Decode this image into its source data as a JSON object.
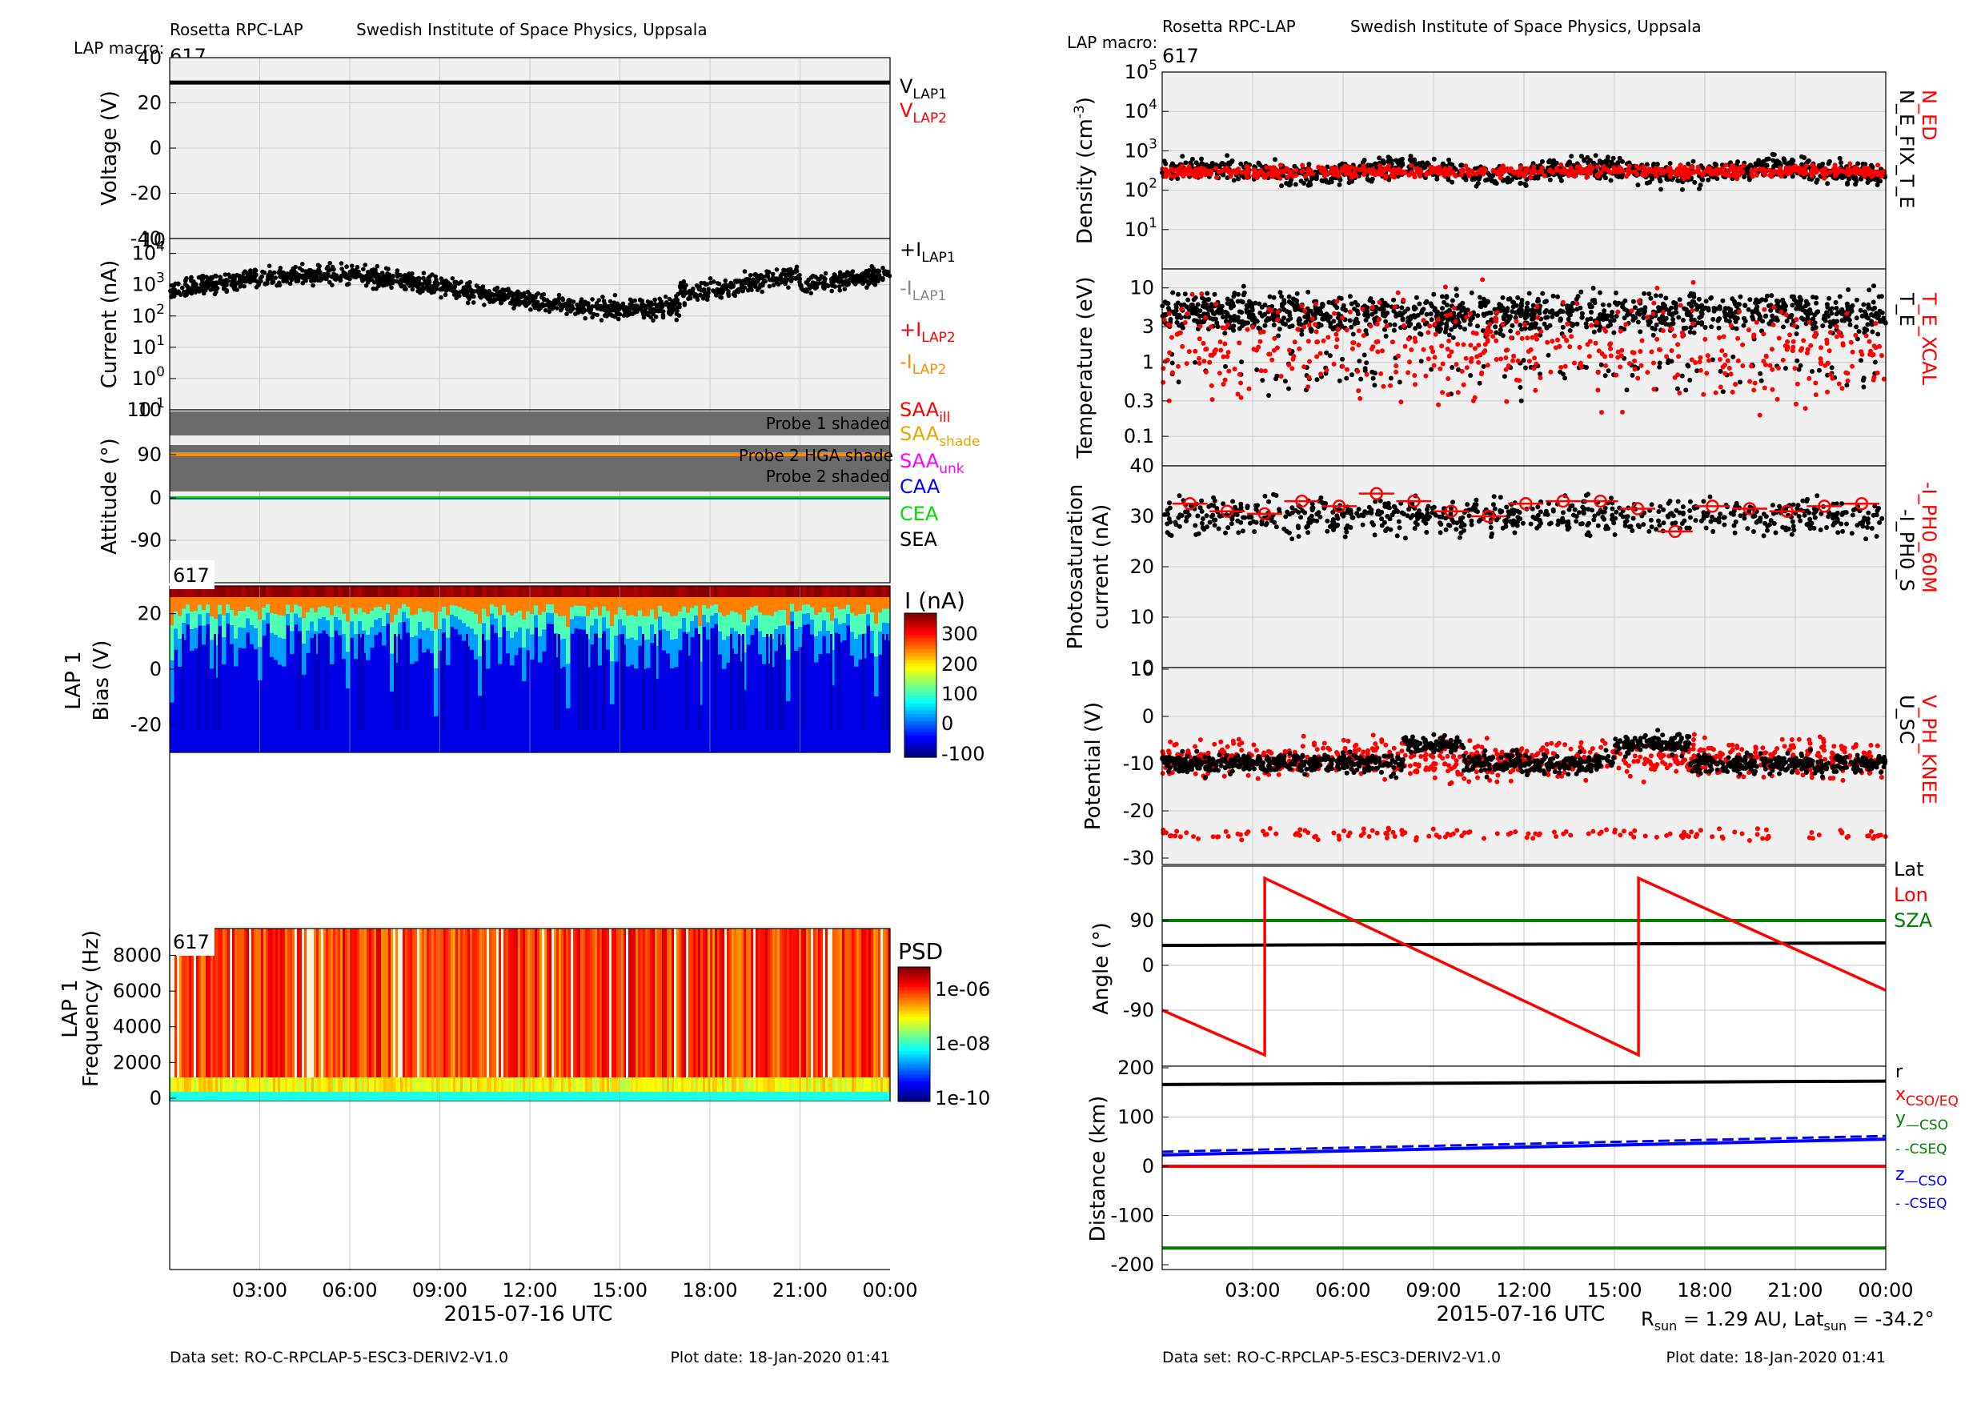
{
  "left": {
    "header": {
      "instrument": "Rosetta RPC-LAP",
      "institute": "Swedish Institute of Space Physics, Uppsala",
      "macro_label": "LAP macro:",
      "macro": "617"
    },
    "xaxis": {
      "ticks": [
        "03:00",
        "06:00",
        "09:00",
        "12:00",
        "15:00",
        "18:00",
        "21:00",
        "00:00"
      ],
      "title": "2015-07-16 UTC"
    },
    "footer": {
      "dataset": "Data set: RO-C-RPCLAP-5-ESC3-DERIV2-V1.0",
      "plotdate": "Plot date: 18-Jan-2020 01:41"
    }
  },
  "right": {
    "header": {
      "instrument": "Rosetta RPC-LAP",
      "institute": "Swedish Institute of Space Physics, Uppsala",
      "macro_label": "LAP macro:",
      "macro": "617"
    },
    "xaxis": {
      "ticks": [
        "03:00",
        "06:00",
        "09:00",
        "12:00",
        "15:00",
        "18:00",
        "21:00",
        "00:00"
      ],
      "title": "2015-07-16 UTC"
    },
    "footer": {
      "dataset": "Data set: RO-C-RPCLAP-5-ESC3-DERIV2-V1.0",
      "plotdate": "Plot date: 18-Jan-2020 01:41"
    },
    "rsun_text": "R",
    "rsun_sub": "sun",
    "rsun_val": " = 1.29 AU, Lat",
    "latsun_sub": "sun",
    "latsun_val": " = -34.2°"
  },
  "colors": {
    "black": "#000000",
    "red": "#ff0000",
    "gray": "#888888",
    "orange": "#ff8c00",
    "gold": "#e6a800",
    "magenta": "#ff00ff",
    "blue": "#0000ff",
    "green": "#00dd00",
    "darkgreen": "#008000",
    "panel": "#f0f0f0",
    "shade": "#6b6b6b"
  },
  "chart_data": [
    {
      "id": "voltage",
      "type": "line",
      "ylabel": "Voltage (V)",
      "ylim": [
        -40,
        40
      ],
      "yticks": [
        "40",
        "20",
        "0",
        "-20",
        "-40"
      ],
      "series": [
        {
          "name": "V_LAP1",
          "values": [
            29,
            29
          ]
        }
      ],
      "legend": [
        {
          "main": "V",
          "sub": "LAP1",
          "color": "black"
        },
        {
          "main": "V",
          "sub": "LAP2",
          "color": "red"
        }
      ]
    },
    {
      "id": "current",
      "type": "scatter",
      "ylabel": "Current (nA)",
      "yscale": "log",
      "ylim": [
        0.1,
        10000
      ],
      "yticks": [
        "10",
        "10",
        "10",
        "10",
        "10",
        "10"
      ],
      "ytick_exp": [
        "4",
        "3",
        "2",
        "1",
        "0",
        "-1"
      ],
      "typical_range": [
        300,
        6000
      ],
      "legend": [
        {
          "main": "+I",
          "sub": "LAP1",
          "color": "black"
        },
        {
          "main": "-I",
          "sub": "LAP1",
          "color": "gray"
        },
        {
          "main": "+I",
          "sub": "LAP2",
          "color": "red"
        },
        {
          "main": "-I",
          "sub": "LAP2",
          "color": "orange"
        }
      ]
    },
    {
      "id": "attitude",
      "type": "line",
      "ylabel": "Attitude (°)",
      "yticks": [
        "90",
        "0",
        "-90"
      ],
      "bands": [
        {
          "label": "Probe 1 shaded"
        },
        {
          "label": "Probe 2 HGA shade"
        },
        {
          "label": "Probe 2 shaded"
        }
      ],
      "series": [
        {
          "name": "SAA",
          "values": [
            90,
            90
          ]
        },
        {
          "name": "CEA",
          "values": [
            0,
            0
          ]
        }
      ],
      "legend": [
        {
          "main": "SAA",
          "sub": "ill",
          "color": "red"
        },
        {
          "main": "SAA",
          "sub": "shade",
          "color": "gold"
        },
        {
          "main": "SAA",
          "sub": "unk",
          "color": "magenta"
        },
        {
          "main": "CAA",
          "sub": "",
          "color": "blue"
        },
        {
          "main": "CEA",
          "sub": "",
          "color": "green"
        },
        {
          "main": "SEA",
          "sub": "",
          "color": "black"
        }
      ]
    },
    {
      "id": "sweep",
      "type": "heatmap",
      "ylabel": "Bias (V)",
      "ylabel2": "LAP 1",
      "ylim": [
        -30,
        30
      ],
      "yticks": [
        "20",
        "0",
        "-20"
      ],
      "macro": "617",
      "colorbar": {
        "title": "I (nA)",
        "ticks": [
          "300",
          "200",
          "100",
          "0",
          "-100"
        ]
      }
    },
    {
      "id": "psd",
      "type": "heatmap",
      "ylabel": "Frequency (Hz)",
      "ylabel2": "LAP 1",
      "ylim": [
        0,
        9500
      ],
      "yticks": [
        "8000",
        "6000",
        "4000",
        "2000",
        "0"
      ],
      "macro": "617",
      "colorbar": {
        "title": "PSD",
        "ticks": [
          "1e-06",
          "1e-08",
          "1e-10"
        ]
      }
    },
    {
      "id": "density",
      "type": "scatter",
      "ylabel": "Density (cm",
      "ylabel_sup": "-3",
      "ylabel_end": ")",
      "yscale": "log",
      "ylim": [
        1,
        100000
      ],
      "yticks": [
        "10",
        "10",
        "10",
        "10",
        "10"
      ],
      "ytick_exp": [
        "5",
        "4",
        "3",
        "2",
        "1"
      ],
      "typical": 300,
      "legend": [
        {
          "text": "N_ED",
          "color": "red"
        },
        {
          "text": "N_E_FIX_T_E",
          "color": "black"
        }
      ]
    },
    {
      "id": "temperature",
      "type": "scatter",
      "ylabel": "Temperature (eV)",
      "yscale": "log",
      "ylim": [
        0.02,
        15
      ],
      "yticks": [
        "10",
        "3",
        "1",
        "0.3",
        "0.1"
      ],
      "legend": [
        {
          "text": "T_E_XCAL",
          "color": "red"
        },
        {
          "text": "T_E",
          "color": "black"
        }
      ]
    },
    {
      "id": "photo",
      "type": "scatter",
      "ylabel": "Photosaturation",
      "ylabel2": "current (nA)",
      "ylim": [
        0,
        40
      ],
      "yticks": [
        "40",
        "30",
        "20",
        "10",
        "0"
      ],
      "averages_60m": [
        32.5,
        31,
        30.5,
        33,
        32,
        34.5,
        33,
        31,
        30,
        32.5,
        33,
        33,
        31.5,
        27,
        32,
        31.5,
        31,
        32,
        32.5
      ],
      "legend": [
        {
          "text": "-I_PH0_60M",
          "color": "red"
        },
        {
          "text": "-I_PH0_S",
          "color": "black"
        }
      ]
    },
    {
      "id": "potential",
      "type": "scatter",
      "ylabel": "Potential (V)",
      "ylim": [
        -30,
        10
      ],
      "yticks": [
        "10",
        "0",
        "-10",
        "-20",
        "-30"
      ],
      "legend": [
        {
          "text": "V_PH_KNEE",
          "color": "red"
        },
        {
          "text": "U_SC",
          "color": "black"
        }
      ]
    },
    {
      "id": "angle",
      "type": "line",
      "ylabel": "Angle (°)",
      "ylim": [
        -180,
        180
      ],
      "yticks": [
        "90",
        "0",
        "-90"
      ],
      "series": [
        {
          "name": "Lat",
          "values": [
            40,
            45
          ]
        },
        {
          "name": "Lon",
          "x": [
            0,
            3.4,
            3.4,
            15.8,
            15.8,
            24
          ],
          "values": [
            -90,
            -180,
            175,
            -180,
            175,
            -50
          ]
        },
        {
          "name": "SZA",
          "values": [
            90,
            90
          ]
        }
      ],
      "legend": [
        {
          "text": "Lat",
          "color": "black"
        },
        {
          "text": "Lon",
          "color": "red"
        },
        {
          "text": "SZA",
          "color": "darkgreen"
        }
      ]
    },
    {
      "id": "distance",
      "type": "line",
      "ylabel": "Distance (km)",
      "ylim": [
        -200,
        200
      ],
      "yticks": [
        "200",
        "100",
        "0",
        "-100",
        "-200"
      ],
      "series": [
        {
          "name": "r",
          "values": [
            166,
            173
          ]
        },
        {
          "name": "x",
          "values": [
            0,
            0
          ]
        },
        {
          "name": "y",
          "values": [
            -166,
            -166
          ]
        },
        {
          "name": "z",
          "values": [
            23,
            55
          ]
        }
      ],
      "legend": [
        {
          "main": "r",
          "sub": "",
          "color": "black"
        },
        {
          "main": "x",
          "sub": "CSO/EQ",
          "color": "red"
        },
        {
          "main": "y",
          "sub": "—CSO",
          "color": "darkgreen"
        },
        {
          "main": "",
          "sub": "- -CSEQ",
          "color": "darkgreen"
        },
        {
          "main": "z",
          "sub": "—CSO",
          "color": "blue"
        },
        {
          "main": "",
          "sub": "- -CSEQ",
          "color": "blue"
        }
      ]
    }
  ]
}
